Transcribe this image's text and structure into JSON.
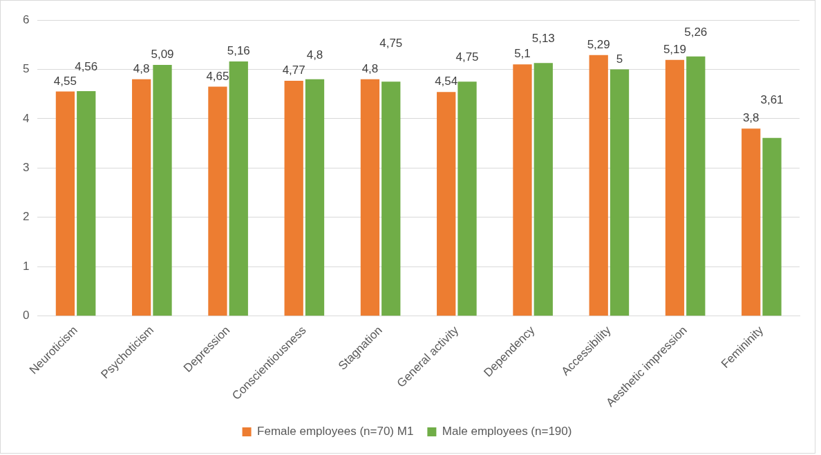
{
  "chart_data": {
    "type": "bar",
    "categories": [
      "Neuroticism",
      "Psychoticism",
      "Depression",
      "Conscientiousness",
      "Stagnation",
      "General activity",
      "Dependency",
      "Accessibility",
      "Aesthetic impression",
      "Femininity"
    ],
    "series": [
      {
        "name": "Female employees (n=70) M1",
        "color": "#ed7d31",
        "values": [
          4.55,
          4.8,
          4.65,
          4.77,
          4.8,
          4.54,
          5.1,
          5.29,
          5.19,
          3.8
        ],
        "value_labels": [
          "4,55",
          "4,8",
          "4,65",
          "4,77",
          "4,8",
          "4,54",
          "5,1",
          "5,29",
          "5,19",
          "3,8"
        ]
      },
      {
        "name": "Male employees (n=190)",
        "color": "#70ad47",
        "values": [
          4.56,
          5.09,
          5.16,
          4.8,
          4.75,
          4.75,
          5.13,
          5,
          5.26,
          3.61
        ],
        "value_labels": [
          "4,56",
          "5,09",
          "5,16",
          "4,8",
          "4,75",
          "4,75",
          "5,13",
          "5",
          "5,26",
          "3,61"
        ]
      }
    ],
    "ylim": [
      0,
      6
    ],
    "yticks": [
      0,
      1,
      2,
      3,
      4,
      5,
      6
    ],
    "grid": "y",
    "legend": "bottom"
  }
}
